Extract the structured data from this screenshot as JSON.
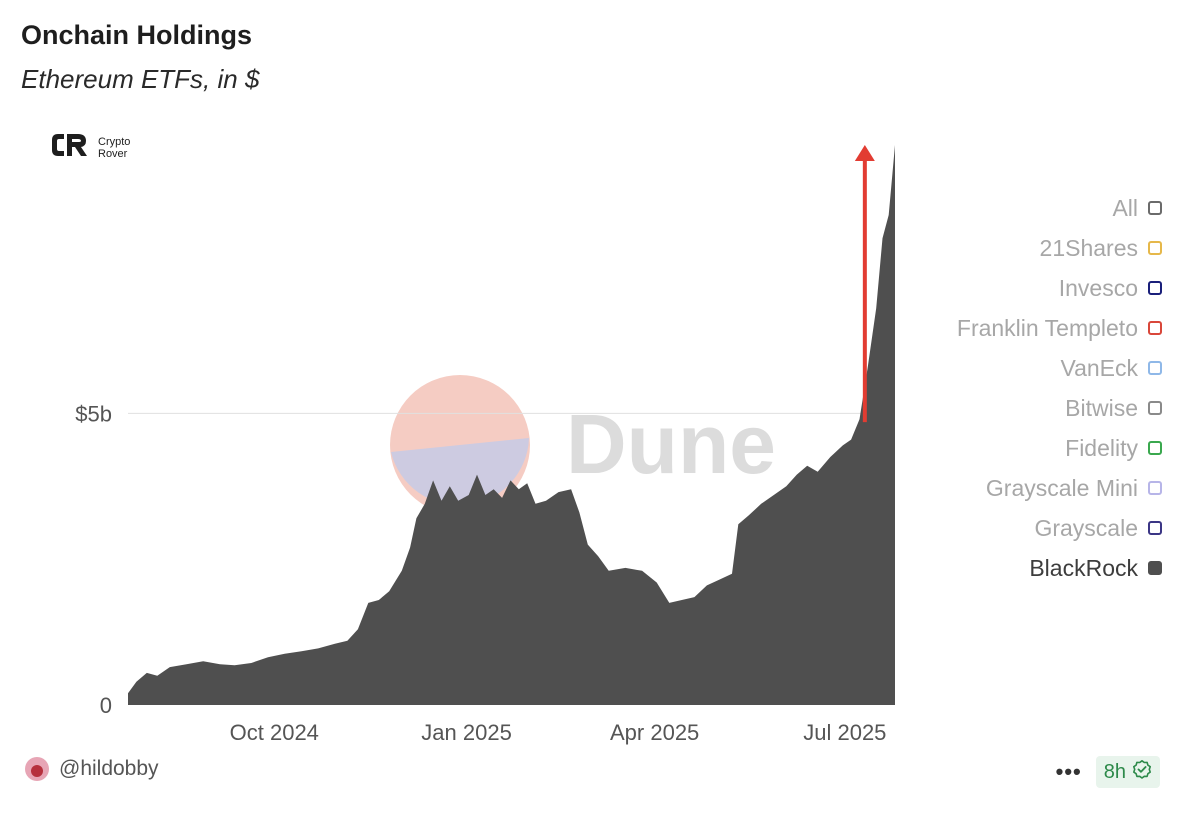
{
  "header": {
    "title": "Onchain Holdings",
    "subtitle": "Ethereum ETFs, in $"
  },
  "brand": {
    "line1": "Crypto",
    "line2": "Rover",
    "icon": "crypto-rover-logo-icon"
  },
  "watermark": {
    "text": "Dune"
  },
  "legend": {
    "items": [
      {
        "label": "All",
        "color": "#6b6b6b",
        "active": false
      },
      {
        "label": "21Shares",
        "color": "#e6b84a",
        "active": false
      },
      {
        "label": "Invesco",
        "color": "#1a1f7a",
        "active": false
      },
      {
        "label": "Franklin Templeto",
        "color": "#d9473a",
        "active": false
      },
      {
        "label": "VanEck",
        "color": "#8fb8e8",
        "active": false
      },
      {
        "label": "Bitwise",
        "color": "#8a8a8a",
        "active": false
      },
      {
        "label": "Fidelity",
        "color": "#3aa84e",
        "active": false
      },
      {
        "label": "Grayscale Mini",
        "color": "#b7b5e8",
        "active": false
      },
      {
        "label": "Grayscale",
        "color": "#3b3685",
        "active": false
      },
      {
        "label": "BlackRock",
        "color": "#4f4f4f",
        "active": true
      }
    ]
  },
  "footer": {
    "username": "@hildobby",
    "avatar_icon": "avatar-icon",
    "more": "•••",
    "time": "8h",
    "time_icon": "check-circle-icon",
    "time_color": "#2d8a4a"
  },
  "chart_data": {
    "type": "area",
    "series": [
      {
        "name": "BlackRock",
        "color": "#4f4f4f",
        "points": [
          [
            "2024-07-23",
            0.2
          ],
          [
            "2024-07-27",
            0.4
          ],
          [
            "2024-08-01",
            0.55
          ],
          [
            "2024-08-06",
            0.5
          ],
          [
            "2024-08-12",
            0.65
          ],
          [
            "2024-08-20",
            0.7
          ],
          [
            "2024-08-28",
            0.75
          ],
          [
            "2024-09-05",
            0.7
          ],
          [
            "2024-09-12",
            0.68
          ],
          [
            "2024-09-20",
            0.72
          ],
          [
            "2024-09-28",
            0.82
          ],
          [
            "2024-10-06",
            0.88
          ],
          [
            "2024-10-14",
            0.92
          ],
          [
            "2024-10-22",
            0.97
          ],
          [
            "2024-10-30",
            1.05
          ],
          [
            "2024-11-05",
            1.1
          ],
          [
            "2024-11-10",
            1.3
          ],
          [
            "2024-11-15",
            1.75
          ],
          [
            "2024-11-20",
            1.8
          ],
          [
            "2024-11-25",
            1.95
          ],
          [
            "2024-12-01",
            2.3
          ],
          [
            "2024-12-05",
            2.7
          ],
          [
            "2024-12-08",
            3.2
          ],
          [
            "2024-12-12",
            3.45
          ],
          [
            "2024-12-16",
            3.85
          ],
          [
            "2024-12-20",
            3.5
          ],
          [
            "2024-12-24",
            3.75
          ],
          [
            "2024-12-28",
            3.5
          ],
          [
            "2025-01-02",
            3.6
          ],
          [
            "2025-01-06",
            3.95
          ],
          [
            "2025-01-10",
            3.6
          ],
          [
            "2025-01-14",
            3.7
          ],
          [
            "2025-01-18",
            3.55
          ],
          [
            "2025-01-22",
            3.85
          ],
          [
            "2025-01-26",
            3.7
          ],
          [
            "2025-01-30",
            3.8
          ],
          [
            "2025-02-03",
            3.45
          ],
          [
            "2025-02-08",
            3.5
          ],
          [
            "2025-02-14",
            3.65
          ],
          [
            "2025-02-20",
            3.7
          ],
          [
            "2025-02-24",
            3.3
          ],
          [
            "2025-02-28",
            2.75
          ],
          [
            "2025-03-05",
            2.55
          ],
          [
            "2025-03-10",
            2.3
          ],
          [
            "2025-03-18",
            2.35
          ],
          [
            "2025-03-26",
            2.3
          ],
          [
            "2025-04-02",
            2.1
          ],
          [
            "2025-04-08",
            1.75
          ],
          [
            "2025-04-14",
            1.8
          ],
          [
            "2025-04-20",
            1.85
          ],
          [
            "2025-04-26",
            2.05
          ],
          [
            "2025-05-02",
            2.15
          ],
          [
            "2025-05-08",
            2.25
          ],
          [
            "2025-05-11",
            3.1
          ],
          [
            "2025-05-16",
            3.25
          ],
          [
            "2025-05-22",
            3.45
          ],
          [
            "2025-05-28",
            3.6
          ],
          [
            "2025-06-03",
            3.75
          ],
          [
            "2025-06-08",
            3.95
          ],
          [
            "2025-06-13",
            4.1
          ],
          [
            "2025-06-18",
            4.0
          ],
          [
            "2025-06-24",
            4.25
          ],
          [
            "2025-06-30",
            4.45
          ],
          [
            "2025-07-04",
            4.55
          ],
          [
            "2025-07-08",
            4.9
          ],
          [
            "2025-07-12",
            5.8
          ],
          [
            "2025-07-16",
            6.8
          ],
          [
            "2025-07-19",
            8.0
          ],
          [
            "2025-07-22",
            8.4
          ],
          [
            "2025-07-25",
            9.6
          ]
        ]
      }
    ],
    "x_ticks": [
      {
        "date": "2024-10-01",
        "label": "Oct 2024"
      },
      {
        "date": "2025-01-01",
        "label": "Jan 2025"
      },
      {
        "date": "2025-04-01",
        "label": "Apr 2025"
      },
      {
        "date": "2025-07-01",
        "label": "Jul 2025"
      }
    ],
    "y_ticks": [
      {
        "value": 0,
        "label": "0"
      },
      {
        "value": 5,
        "label": "$5b"
      }
    ],
    "xlim": [
      "2024-07-23",
      "2025-07-25"
    ],
    "ylim": [
      0,
      9.6
    ],
    "grid": "horizontal",
    "legend_position": "right",
    "annotation": {
      "type": "arrow",
      "color": "#e23c32",
      "date": "2025-07-01",
      "from": 4.85,
      "to": 9.6
    }
  }
}
